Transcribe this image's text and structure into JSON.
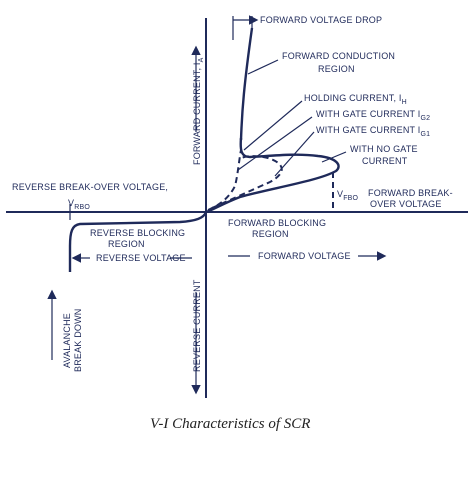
{
  "labels": {
    "forward_voltage_drop": "FORWARD VOLTAGE DROP",
    "forward_conduction": "FORWARD CONDUCTION",
    "region": "REGION",
    "holding_current": "HOLDING CURRENT, I",
    "holding_sub": "H",
    "gate_current_g2": "WITH GATE CURRENT I",
    "g2_sub": "G2",
    "gate_current_g1": "WITH GATE CURRENT I",
    "g1_sub": "G1",
    "no_gate_1": "WITH NO GATE",
    "no_gate_2": "CURRENT",
    "reverse_breakover": "REVERSE BREAK-OVER VOLTAGE,",
    "vrbo": "V",
    "vrbo_sub": "RBO",
    "vfbo": "V",
    "vfbo_sub": "FBO",
    "forward_breakover_1": "FORWARD BREAK-",
    "forward_breakover_2": "OVER VOLTAGE",
    "reverse_blocking_1": "REVERSE BLOCKING",
    "reverse_blocking_2": "REGION",
    "forward_blocking_1": "FORWARD BLOCKING",
    "forward_blocking_2": "REGION",
    "reverse_voltage": "REVERSE VOLTAGE",
    "forward_voltage": "FORWARD VOLTAGE",
    "forward_current": "FORWARD CURRENT, I",
    "forward_current_sub": "A",
    "reverse_current": "REVERSE CURRENT",
    "avalanche_1": "AVALANCHE",
    "avalanche_2": "BREAK DOWN"
  },
  "caption": "V-I Characteristics of SCR",
  "colors": {
    "ink": "#1f2a5a",
    "background": "#ffffff"
  }
}
